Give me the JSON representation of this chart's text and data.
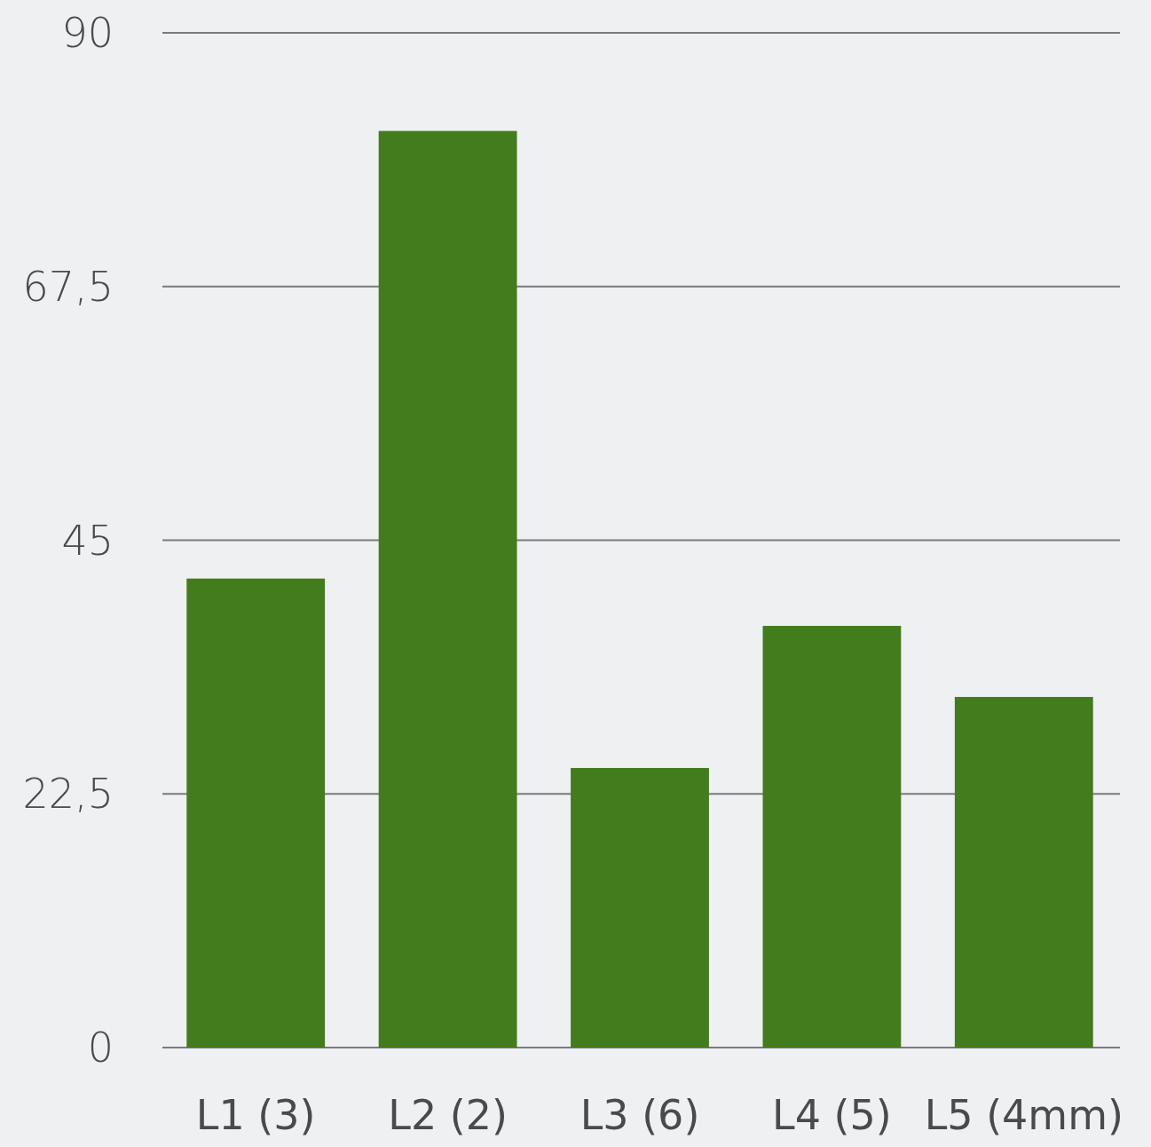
{
  "chart_data": {
    "type": "bar",
    "categories": [
      "L1 (3)",
      "L2 (2)",
      "L3 (6)",
      "L4 (5)",
      "L5 (4mm)"
    ],
    "values": [
      41.6,
      81.3,
      24.8,
      37.4,
      31.1
    ],
    "color": "#427c1c",
    "ylim": [
      0,
      90
    ],
    "yticks": [
      0,
      {
        "value": 22.5,
        "label": "22,5"
      },
      45,
      {
        "value": 67.5,
        "label": "67,5"
      },
      90
    ],
    "grid": "y"
  }
}
